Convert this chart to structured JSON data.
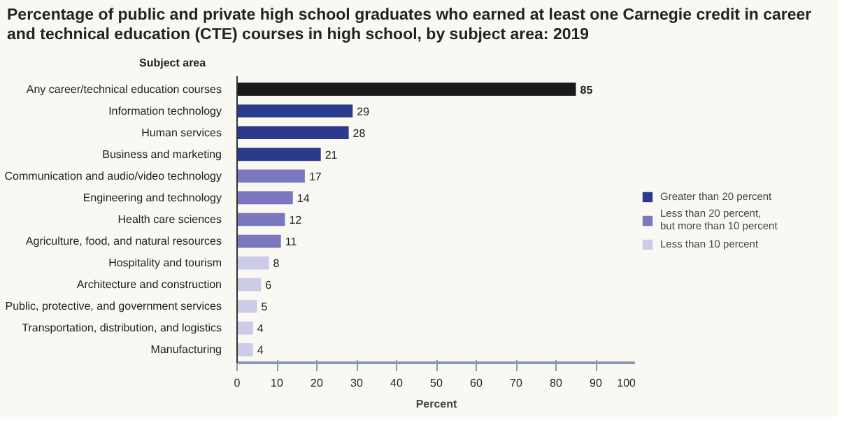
{
  "chart_data": {
    "type": "bar",
    "orientation": "horizontal",
    "title": "Percentage of public and private high school graduates who earned at least one Carnegie credit in career and technical education (CTE) courses in high school, by subject area: 2019",
    "ylabel": "Subject area",
    "xlabel": "Percent",
    "categories": [
      "Any career/technical education courses",
      "Information technology",
      "Human services",
      "Business and marketing",
      "Communication and audio/video technology",
      "Engineering and technology",
      "Health care sciences",
      "Agriculture, food, and natural resources",
      "Hospitality and tourism",
      "Architecture and construction",
      "Public, protective, and government services",
      "Transportation, distribution, and logistics",
      "Manufacturing"
    ],
    "series": [
      {
        "color": "#1a1a1a",
        "values": [
          85,
          null,
          null,
          null,
          null,
          null,
          null,
          null,
          null,
          null,
          null,
          null,
          null
        ]
      },
      {
        "name": "Greater than 20 percent",
        "color": "#2b3a8a",
        "values": [
          null,
          29,
          28,
          21,
          null,
          null,
          null,
          null,
          null,
          null,
          null,
          null,
          null
        ]
      },
      {
        "name": "Less than 20 percent, but more than 10 percent",
        "color": "#7b78bf",
        "values": [
          null,
          null,
          null,
          null,
          17,
          14,
          12,
          11,
          null,
          null,
          null,
          null,
          null
        ]
      },
      {
        "name": "Less than 10 percent",
        "color": "#cccbe8",
        "values": [
          null,
          null,
          null,
          null,
          null,
          null,
          null,
          null,
          8,
          6,
          5,
          4,
          4
        ]
      }
    ],
    "xlim": [
      0,
      100
    ],
    "xticks": [
      0,
      10,
      20,
      30,
      40,
      50,
      60,
      70,
      80,
      90,
      100
    ],
    "data_labels": true,
    "legend": "right",
    "grid": false
  }
}
